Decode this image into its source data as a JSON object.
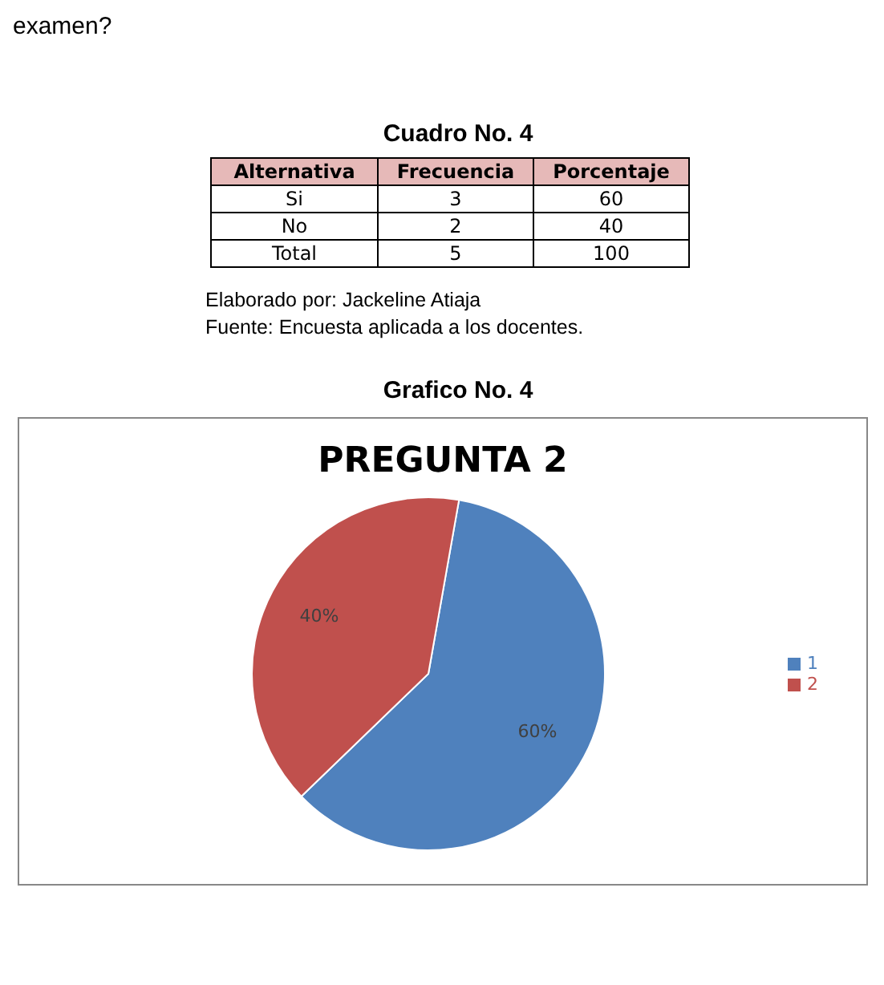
{
  "chart_data": [
    {
      "type": "other",
      "title": "Cuadro No. 4",
      "data_labels": true,
      "xlabel": "Alternativa",
      "categories": [
        "Si",
        "No",
        "Total"
      ],
      "series": [
        {
          "name": "Frecuencia",
          "values": [
            3,
            2,
            5
          ]
        },
        {
          "name": "Porcentaje",
          "values": [
            60,
            40,
            100
          ]
        }
      ],
      "annotations": [
        "examen?",
        "Elaborado por: Jackeline Atiaja",
        "Fuente: Encuesta aplicada a  los docentes."
      ]
    },
    {
      "type": "pie",
      "subtitle": "Grafico No. 4",
      "title": "PREGUNTA 2",
      "categories": [
        "1",
        "2"
      ],
      "values": [
        60,
        40
      ],
      "colors": [
        "#4f81bd",
        "#c0504d"
      ],
      "value_labels": [
        "60%",
        "40%"
      ],
      "legend": "right"
    }
  ]
}
